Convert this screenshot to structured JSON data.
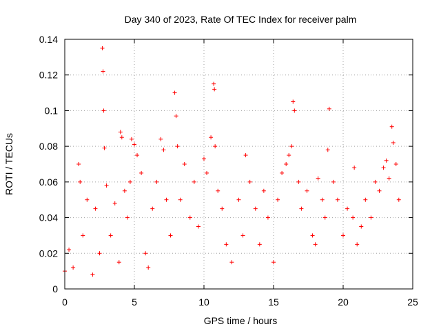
{
  "chart_data": {
    "type": "scatter",
    "title": "Day 340 of 2023, Rate Of TEC Index for receiver palm",
    "xlabel": "GPS time / hours",
    "ylabel": "ROTI / TECUs",
    "xlim": [
      0,
      25
    ],
    "ylim": [
      0,
      0.14
    ],
    "xticks": [
      0,
      5,
      10,
      15,
      20,
      25
    ],
    "xtick_labels": [
      "0",
      "5",
      "10",
      "15",
      "20",
      "25"
    ],
    "yticks": [
      0,
      0.02,
      0.04,
      0.06,
      0.08,
      0.1,
      0.12,
      0.14
    ],
    "ytick_labels": [
      "0",
      "0.02",
      "0.04",
      "0.06",
      "0.08",
      "0.1",
      "0.12",
      "0.14"
    ],
    "grid": true,
    "marker": "+",
    "color": "#ff0000",
    "series": [
      {
        "name": "ROTI",
        "x": [
          0.0,
          0.3,
          0.6,
          1.0,
          1.1,
          1.3,
          1.6,
          2.0,
          2.2,
          2.5,
          2.7,
          2.75,
          2.8,
          2.85,
          3.0,
          3.3,
          3.6,
          3.9,
          4.0,
          4.1,
          4.3,
          4.5,
          4.7,
          4.8,
          5.0,
          5.2,
          5.5,
          5.8,
          6.0,
          6.3,
          6.6,
          6.9,
          7.1,
          7.3,
          7.6,
          7.9,
          8.0,
          8.1,
          8.3,
          8.6,
          9.0,
          9.3,
          9.6,
          10.0,
          10.2,
          10.5,
          10.7,
          10.75,
          10.8,
          11.0,
          11.3,
          11.6,
          12.0,
          12.5,
          12.8,
          13.0,
          13.3,
          13.7,
          14.0,
          14.3,
          14.6,
          15.0,
          15.3,
          15.6,
          15.9,
          16.1,
          16.3,
          16.4,
          16.5,
          16.8,
          17.0,
          17.4,
          17.8,
          18.0,
          18.2,
          18.5,
          18.7,
          18.9,
          19.0,
          19.3,
          19.6,
          20.0,
          20.3,
          20.7,
          20.8,
          21.0,
          21.3,
          21.6,
          22.0,
          22.3,
          22.6,
          22.9,
          23.1,
          23.3,
          23.5,
          23.6,
          23.8,
          24.0
        ],
        "values": [
          0.01,
          0.022,
          0.012,
          0.07,
          0.06,
          0.03,
          0.05,
          0.008,
          0.045,
          0.02,
          0.135,
          0.122,
          0.1,
          0.079,
          0.058,
          0.03,
          0.048,
          0.015,
          0.088,
          0.085,
          0.055,
          0.04,
          0.06,
          0.084,
          0.081,
          0.075,
          0.065,
          0.02,
          0.012,
          0.045,
          0.06,
          0.084,
          0.078,
          0.05,
          0.03,
          0.11,
          0.097,
          0.08,
          0.05,
          0.07,
          0.04,
          0.06,
          0.035,
          0.073,
          0.065,
          0.085,
          0.115,
          0.112,
          0.08,
          0.055,
          0.045,
          0.025,
          0.015,
          0.05,
          0.03,
          0.075,
          0.06,
          0.045,
          0.025,
          0.055,
          0.04,
          0.015,
          0.05,
          0.065,
          0.07,
          0.075,
          0.08,
          0.105,
          0.1,
          0.06,
          0.045,
          0.055,
          0.03,
          0.025,
          0.062,
          0.05,
          0.04,
          0.078,
          0.101,
          0.06,
          0.05,
          0.03,
          0.045,
          0.04,
          0.068,
          0.025,
          0.035,
          0.05,
          0.04,
          0.06,
          0.055,
          0.068,
          0.072,
          0.062,
          0.091,
          0.082,
          0.07,
          0.05
        ]
      }
    ]
  }
}
